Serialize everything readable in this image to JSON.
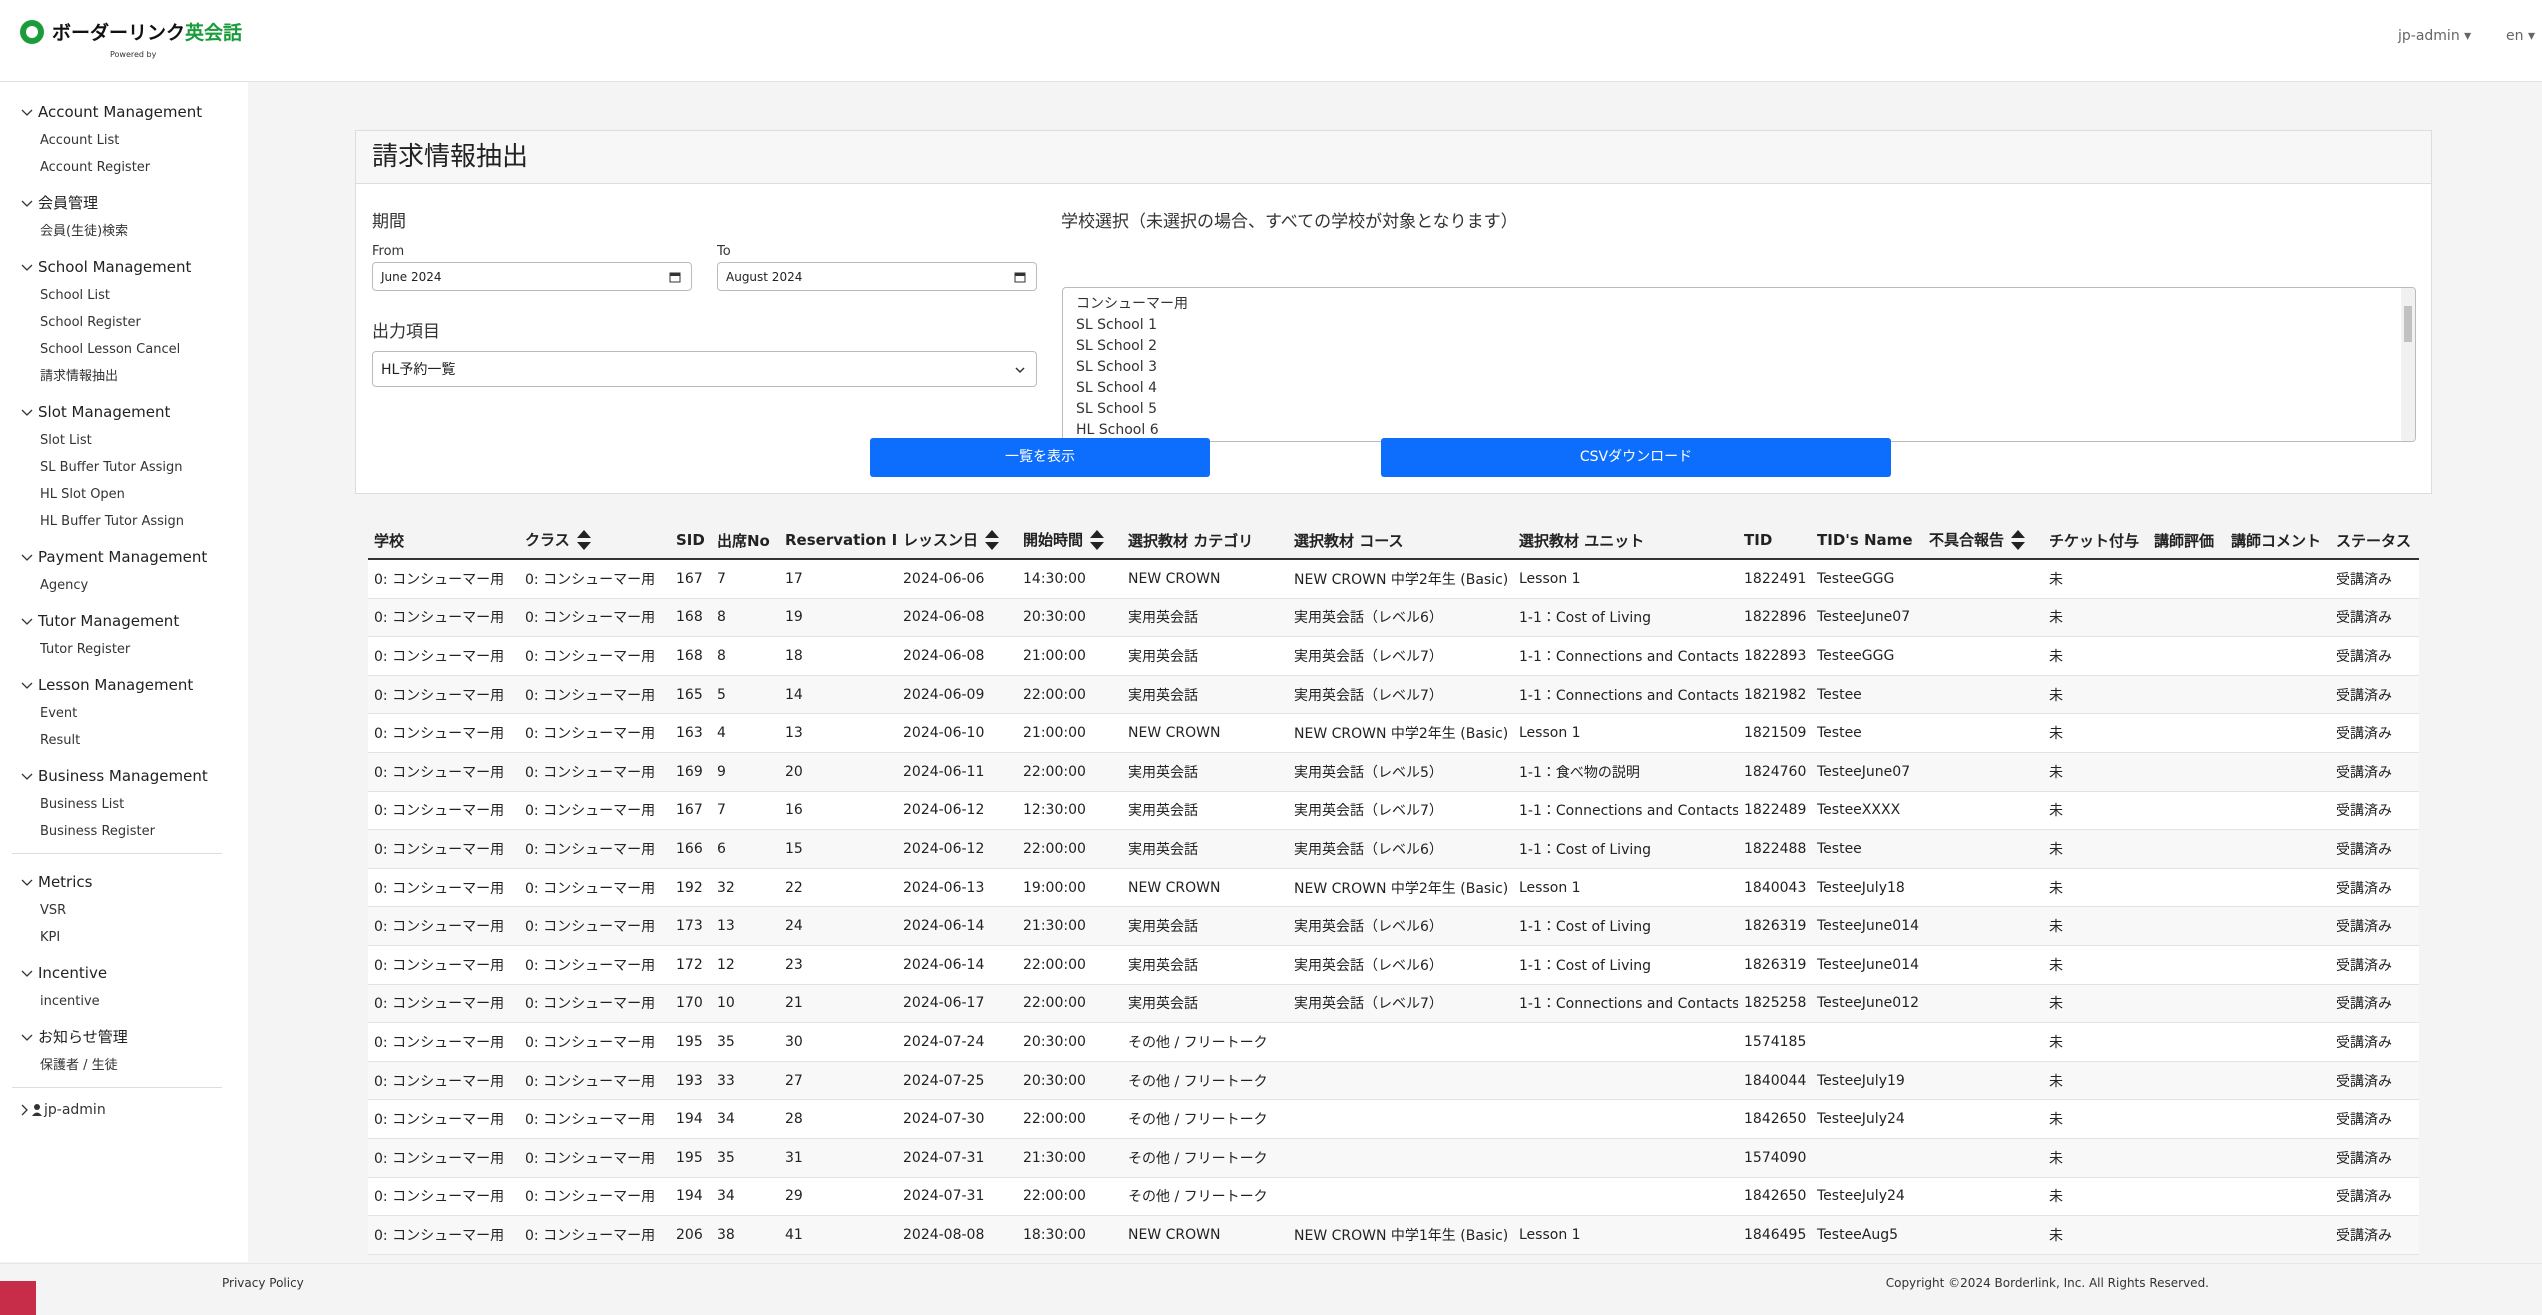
{
  "header": {
    "logo_main": "ボーダーリンク",
    "logo_accent": "英会話",
    "logo_powered": "Powered by",
    "user": "jp-admin",
    "lang": "en"
  },
  "sidebar": {
    "sections": [
      {
        "title": "Account Management",
        "items": [
          "Account List",
          "Account Register"
        ]
      },
      {
        "title": "会員管理",
        "items": [
          "会員(生徒)検索"
        ]
      },
      {
        "title": "School Management",
        "items": [
          "School List",
          "School Register",
          "School Lesson Cancel",
          "請求情報抽出"
        ]
      },
      {
        "title": "Slot Management",
        "items": [
          "Slot List",
          "SL Buffer Tutor Assign",
          "HL Slot Open",
          "HL Buffer Tutor Assign"
        ]
      },
      {
        "title": "Payment Management",
        "items": [
          "Agency"
        ]
      },
      {
        "title": "Tutor Management",
        "items": [
          "Tutor Register"
        ]
      },
      {
        "title": "Lesson Management",
        "items": [
          "Event",
          "Result"
        ]
      },
      {
        "title": "Business Management",
        "items": [
          "Business List",
          "Business Register"
        ]
      },
      {
        "title": "Metrics",
        "items": [
          "VSR",
          "KPI"
        ]
      },
      {
        "title": "Incentive",
        "items": [
          "incentive"
        ]
      },
      {
        "title": "お知らせ管理",
        "items": [
          "保護者 / 生徒"
        ]
      }
    ],
    "user": "jp-admin"
  },
  "form": {
    "title": "請求情報抽出",
    "period_label": "期間",
    "from_label": "From",
    "from_value": "June 2024",
    "to_label": "To",
    "to_value": "August 2024",
    "output_label": "出力項目",
    "output_value": "HL予約一覧",
    "school_label": "学校選択（未選択の場合、すべての学校が対象となります）",
    "schools": [
      "コンシューマー用",
      "SL School 1",
      "SL School 2",
      "SL School 3",
      "SL School 4",
      "SL School 5",
      "HL School 6"
    ],
    "button_list": "一覧を表示",
    "button_csv": "CSVダウンロード"
  },
  "table": {
    "columns": [
      "学校",
      "クラス",
      "SID",
      "出席No",
      "Reservation ID",
      "レッスン日",
      "開始時間",
      "選択教材 カテゴリ",
      "選択教材 コース",
      "選択教材 ユニット",
      "TID",
      "TID's Name",
      "不具合報告",
      "チケット付与",
      "講師評価",
      "講師コメント",
      "ステータス"
    ],
    "rows": [
      [
        "0: コンシューマー用",
        "0: コンシューマー用",
        "167",
        "7",
        "17",
        "2024-06-06",
        "14:30:00",
        "NEW CROWN",
        "NEW CROWN 中学2年生 (Basic)",
        "Lesson 1",
        "1822491",
        "TesteeGGG",
        null,
        "未",
        null,
        null,
        "受講済み"
      ],
      [
        "0: コンシューマー用",
        "0: コンシューマー用",
        "168",
        "8",
        "19",
        "2024-06-08",
        "20:30:00",
        "実用英会話",
        "実用英会話（レベル6）",
        "1-1：Cost of Living",
        "1822896",
        "TesteeJune07",
        null,
        "未",
        null,
        null,
        "受講済み"
      ],
      [
        "0: コンシューマー用",
        "0: コンシューマー用",
        "168",
        "8",
        "18",
        "2024-06-08",
        "21:00:00",
        "実用英会話",
        "実用英会話（レベル7）",
        "1-1：Connections and Contacts",
        "1822893",
        "TesteeGGG",
        null,
        "未",
        null,
        null,
        "受講済み"
      ],
      [
        "0: コンシューマー用",
        "0: コンシューマー用",
        "165",
        "5",
        "14",
        "2024-06-09",
        "22:00:00",
        "実用英会話",
        "実用英会話（レベル7）",
        "1-1：Connections and Contacts",
        "1821982",
        "Testee",
        null,
        "未",
        null,
        null,
        "受講済み"
      ],
      [
        "0: コンシューマー用",
        "0: コンシューマー用",
        "163",
        "4",
        "13",
        "2024-06-10",
        "21:00:00",
        "NEW CROWN",
        "NEW CROWN 中学2年生 (Basic)",
        "Lesson 1",
        "1821509",
        "Testee",
        null,
        "未",
        null,
        null,
        "受講済み"
      ],
      [
        "0: コンシューマー用",
        "0: コンシューマー用",
        "169",
        "9",
        "20",
        "2024-06-11",
        "22:00:00",
        "実用英会話",
        "実用英会話（レベル5）",
        "1-1：食べ物の説明",
        "1824760",
        "TesteeJune07",
        null,
        "未",
        null,
        null,
        "受講済み"
      ],
      [
        "0: コンシューマー用",
        "0: コンシューマー用",
        "167",
        "7",
        "16",
        "2024-06-12",
        "12:30:00",
        "実用英会話",
        "実用英会話（レベル7）",
        "1-1：Connections and Contacts",
        "1822489",
        "TesteeXXXX",
        null,
        "未",
        null,
        null,
        "受講済み"
      ],
      [
        "0: コンシューマー用",
        "0: コンシューマー用",
        "166",
        "6",
        "15",
        "2024-06-12",
        "22:00:00",
        "実用英会話",
        "実用英会話（レベル6）",
        "1-1：Cost of Living",
        "1822488",
        "Testee",
        null,
        "未",
        null,
        null,
        "受講済み"
      ],
      [
        "0: コンシューマー用",
        "0: コンシューマー用",
        "192",
        "32",
        "22",
        "2024-06-13",
        "19:00:00",
        "NEW CROWN",
        "NEW CROWN 中学2年生 (Basic)",
        "Lesson 1",
        "1840043",
        "TesteeJuly18",
        null,
        "未",
        null,
        null,
        "受講済み"
      ],
      [
        "0: コンシューマー用",
        "0: コンシューマー用",
        "173",
        "13",
        "24",
        "2024-06-14",
        "21:30:00",
        "実用英会話",
        "実用英会話（レベル6）",
        "1-1：Cost of Living",
        "1826319",
        "TesteeJune014",
        null,
        "未",
        null,
        null,
        "受講済み"
      ],
      [
        "0: コンシューマー用",
        "0: コンシューマー用",
        "172",
        "12",
        "23",
        "2024-06-14",
        "22:00:00",
        "実用英会話",
        "実用英会話（レベル6）",
        "1-1：Cost of Living",
        "1826319",
        "TesteeJune014",
        null,
        "未",
        null,
        null,
        "受講済み"
      ],
      [
        "0: コンシューマー用",
        "0: コンシューマー用",
        "170",
        "10",
        "21",
        "2024-06-17",
        "22:00:00",
        "実用英会話",
        "実用英会話（レベル7）",
        "1-1：Connections and Contacts",
        "1825258",
        "TesteeJune012",
        null,
        "未",
        null,
        null,
        "受講済み"
      ],
      [
        "0: コンシューマー用",
        "0: コンシューマー用",
        "195",
        "35",
        "30",
        "2024-07-24",
        "20:30:00",
        "その他 / フリートーク",
        null,
        null,
        "1574185",
        null,
        null,
        "未",
        null,
        null,
        "受講済み"
      ],
      [
        "0: コンシューマー用",
        "0: コンシューマー用",
        "193",
        "33",
        "27",
        "2024-07-25",
        "20:30:00",
        "その他 / フリートーク",
        null,
        null,
        "1840044",
        "TesteeJuly19",
        null,
        "未",
        null,
        null,
        "受講済み"
      ],
      [
        "0: コンシューマー用",
        "0: コンシューマー用",
        "194",
        "34",
        "28",
        "2024-07-30",
        "22:00:00",
        "その他 / フリートーク",
        null,
        null,
        "1842650",
        "TesteeJuly24",
        null,
        "未",
        null,
        null,
        "受講済み"
      ],
      [
        "0: コンシューマー用",
        "0: コンシューマー用",
        "195",
        "35",
        "31",
        "2024-07-31",
        "21:30:00",
        "その他 / フリートーク",
        null,
        null,
        "1574090",
        null,
        null,
        "未",
        null,
        null,
        "受講済み"
      ],
      [
        "0: コンシューマー用",
        "0: コンシューマー用",
        "194",
        "34",
        "29",
        "2024-07-31",
        "22:00:00",
        "その他 / フリートーク",
        null,
        null,
        "1842650",
        "TesteeJuly24",
        null,
        "未",
        null,
        null,
        "受講済み"
      ],
      [
        "0: コンシューマー用",
        "0: コンシューマー用",
        "206",
        "38",
        "41",
        "2024-08-08",
        "18:30:00",
        "NEW CROWN",
        "NEW CROWN 中学1年生 (Basic)",
        "Lesson 1",
        "1846495",
        "TesteeAug5",
        null,
        "未",
        null,
        null,
        "受講済み"
      ]
    ]
  },
  "footer": {
    "privacy": "Privacy Policy",
    "copyright": "Copyright ©2024 Borderlink, Inc. All Rights Reserved."
  }
}
